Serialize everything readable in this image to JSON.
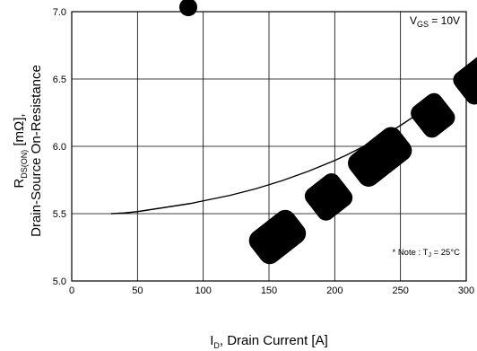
{
  "chart_data": {
    "type": "line",
    "x": [
      30,
      40,
      50,
      60,
      70,
      80,
      90,
      100,
      110,
      120,
      130,
      140,
      150,
      160,
      170,
      180,
      190,
      200,
      210,
      220,
      230,
      240,
      250,
      260,
      270,
      280
    ],
    "series": [
      {
        "values": [
          5.5,
          5.505,
          5.515,
          5.53,
          5.545,
          5.56,
          5.575,
          5.595,
          5.615,
          5.635,
          5.66,
          5.685,
          5.715,
          5.745,
          5.78,
          5.815,
          5.855,
          5.895,
          5.94,
          5.99,
          6.04,
          6.095,
          6.155,
          6.22,
          6.29,
          6.365
        ]
      }
    ],
    "xlim": [
      0,
      300
    ],
    "ylim": [
      5.0,
      7.0
    ],
    "x_ticks": [
      "0",
      "50",
      "100",
      "150",
      "200",
      "250",
      "300"
    ],
    "y_ticks": [
      "5.0",
      "5.5",
      "6.0",
      "6.5",
      "7.0"
    ],
    "x_tick_values": [
      0,
      50,
      100,
      150,
      200,
      250,
      300
    ],
    "y_tick_values": [
      5.0,
      5.5,
      6.0,
      6.5,
      7.0
    ],
    "grid": true,
    "xlabel": {
      "main": "I",
      "sub": "D",
      "rest": ", Drain Current [A]"
    },
    "ylabel": {
      "line1_main": "R",
      "line1_sub": "DS(ON)",
      "line1_rest": " [mΩ],",
      "line2": "Drain-Source On-Resistance"
    },
    "annotations": {
      "condition_main": "V",
      "condition_sub": "GS",
      "condition_rest": " = 10V",
      "note_prefix": "* Note : T",
      "note_sub": "J",
      "note_rest": " = 25°C"
    }
  }
}
